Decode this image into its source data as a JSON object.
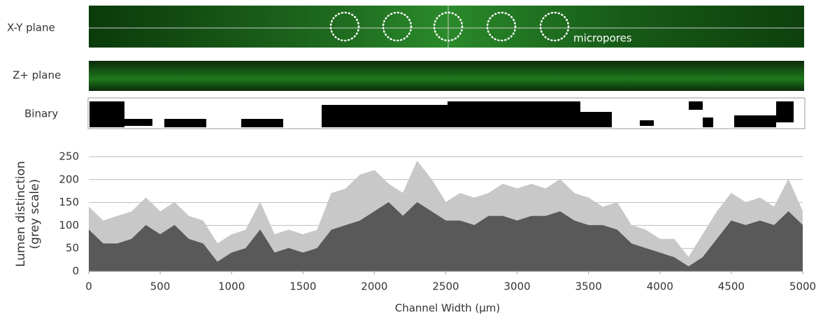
{
  "panels": {
    "xy_label": "X-Y plane",
    "z_label": "Z+ plane",
    "binary_label": "Binary",
    "annotation": "micropores"
  },
  "chart_data": {
    "type": "area",
    "x_label": "Channel Width (μm)",
    "y_label": [
      "Lumen distinction",
      "(grey scale)"
    ],
    "x": [
      0,
      100,
      200,
      300,
      400,
      500,
      600,
      700,
      800,
      900,
      1000,
      1100,
      1200,
      1300,
      1400,
      1500,
      1600,
      1700,
      1800,
      1900,
      2000,
      2100,
      2200,
      2300,
      2400,
      2500,
      2600,
      2700,
      2800,
      2900,
      3000,
      3100,
      3200,
      3300,
      3400,
      3500,
      3600,
      3700,
      3800,
      3900,
      4000,
      4100,
      4200,
      4300,
      4400,
      4500,
      4600,
      4700,
      4800,
      4900,
      5000
    ],
    "series": [
      {
        "color": "#c8c8c8",
        "values": [
          140,
          110,
          120,
          130,
          160,
          130,
          150,
          120,
          110,
          60,
          80,
          90,
          150,
          80,
          90,
          80,
          90,
          170,
          180,
          210,
          220,
          190,
          170,
          240,
          200,
          150,
          170,
          160,
          170,
          190,
          180,
          190,
          180,
          200,
          170,
          160,
          140,
          150,
          100,
          90,
          70,
          70,
          30,
          80,
          130,
          170,
          150,
          160,
          140,
          200,
          130
        ]
      },
      {
        "color": "#595959",
        "values": [
          90,
          60,
          60,
          70,
          100,
          80,
          100,
          70,
          60,
          20,
          40,
          50,
          90,
          40,
          50,
          40,
          50,
          90,
          100,
          110,
          130,
          150,
          120,
          150,
          130,
          110,
          110,
          100,
          120,
          120,
          110,
          120,
          120,
          130,
          110,
          100,
          100,
          90,
          60,
          50,
          40,
          30,
          10,
          30,
          70,
          110,
          100,
          110,
          100,
          130,
          100
        ]
      }
    ],
    "xlim": [
      0,
      5000
    ],
    "xticks": [
      0,
      500,
      1000,
      1500,
      2000,
      2500,
      3000,
      3500,
      4000,
      4500,
      5000
    ],
    "ylim": [
      0,
      250
    ],
    "yticks": [
      0,
      50,
      100,
      150,
      200,
      250
    ],
    "grid": true
  }
}
